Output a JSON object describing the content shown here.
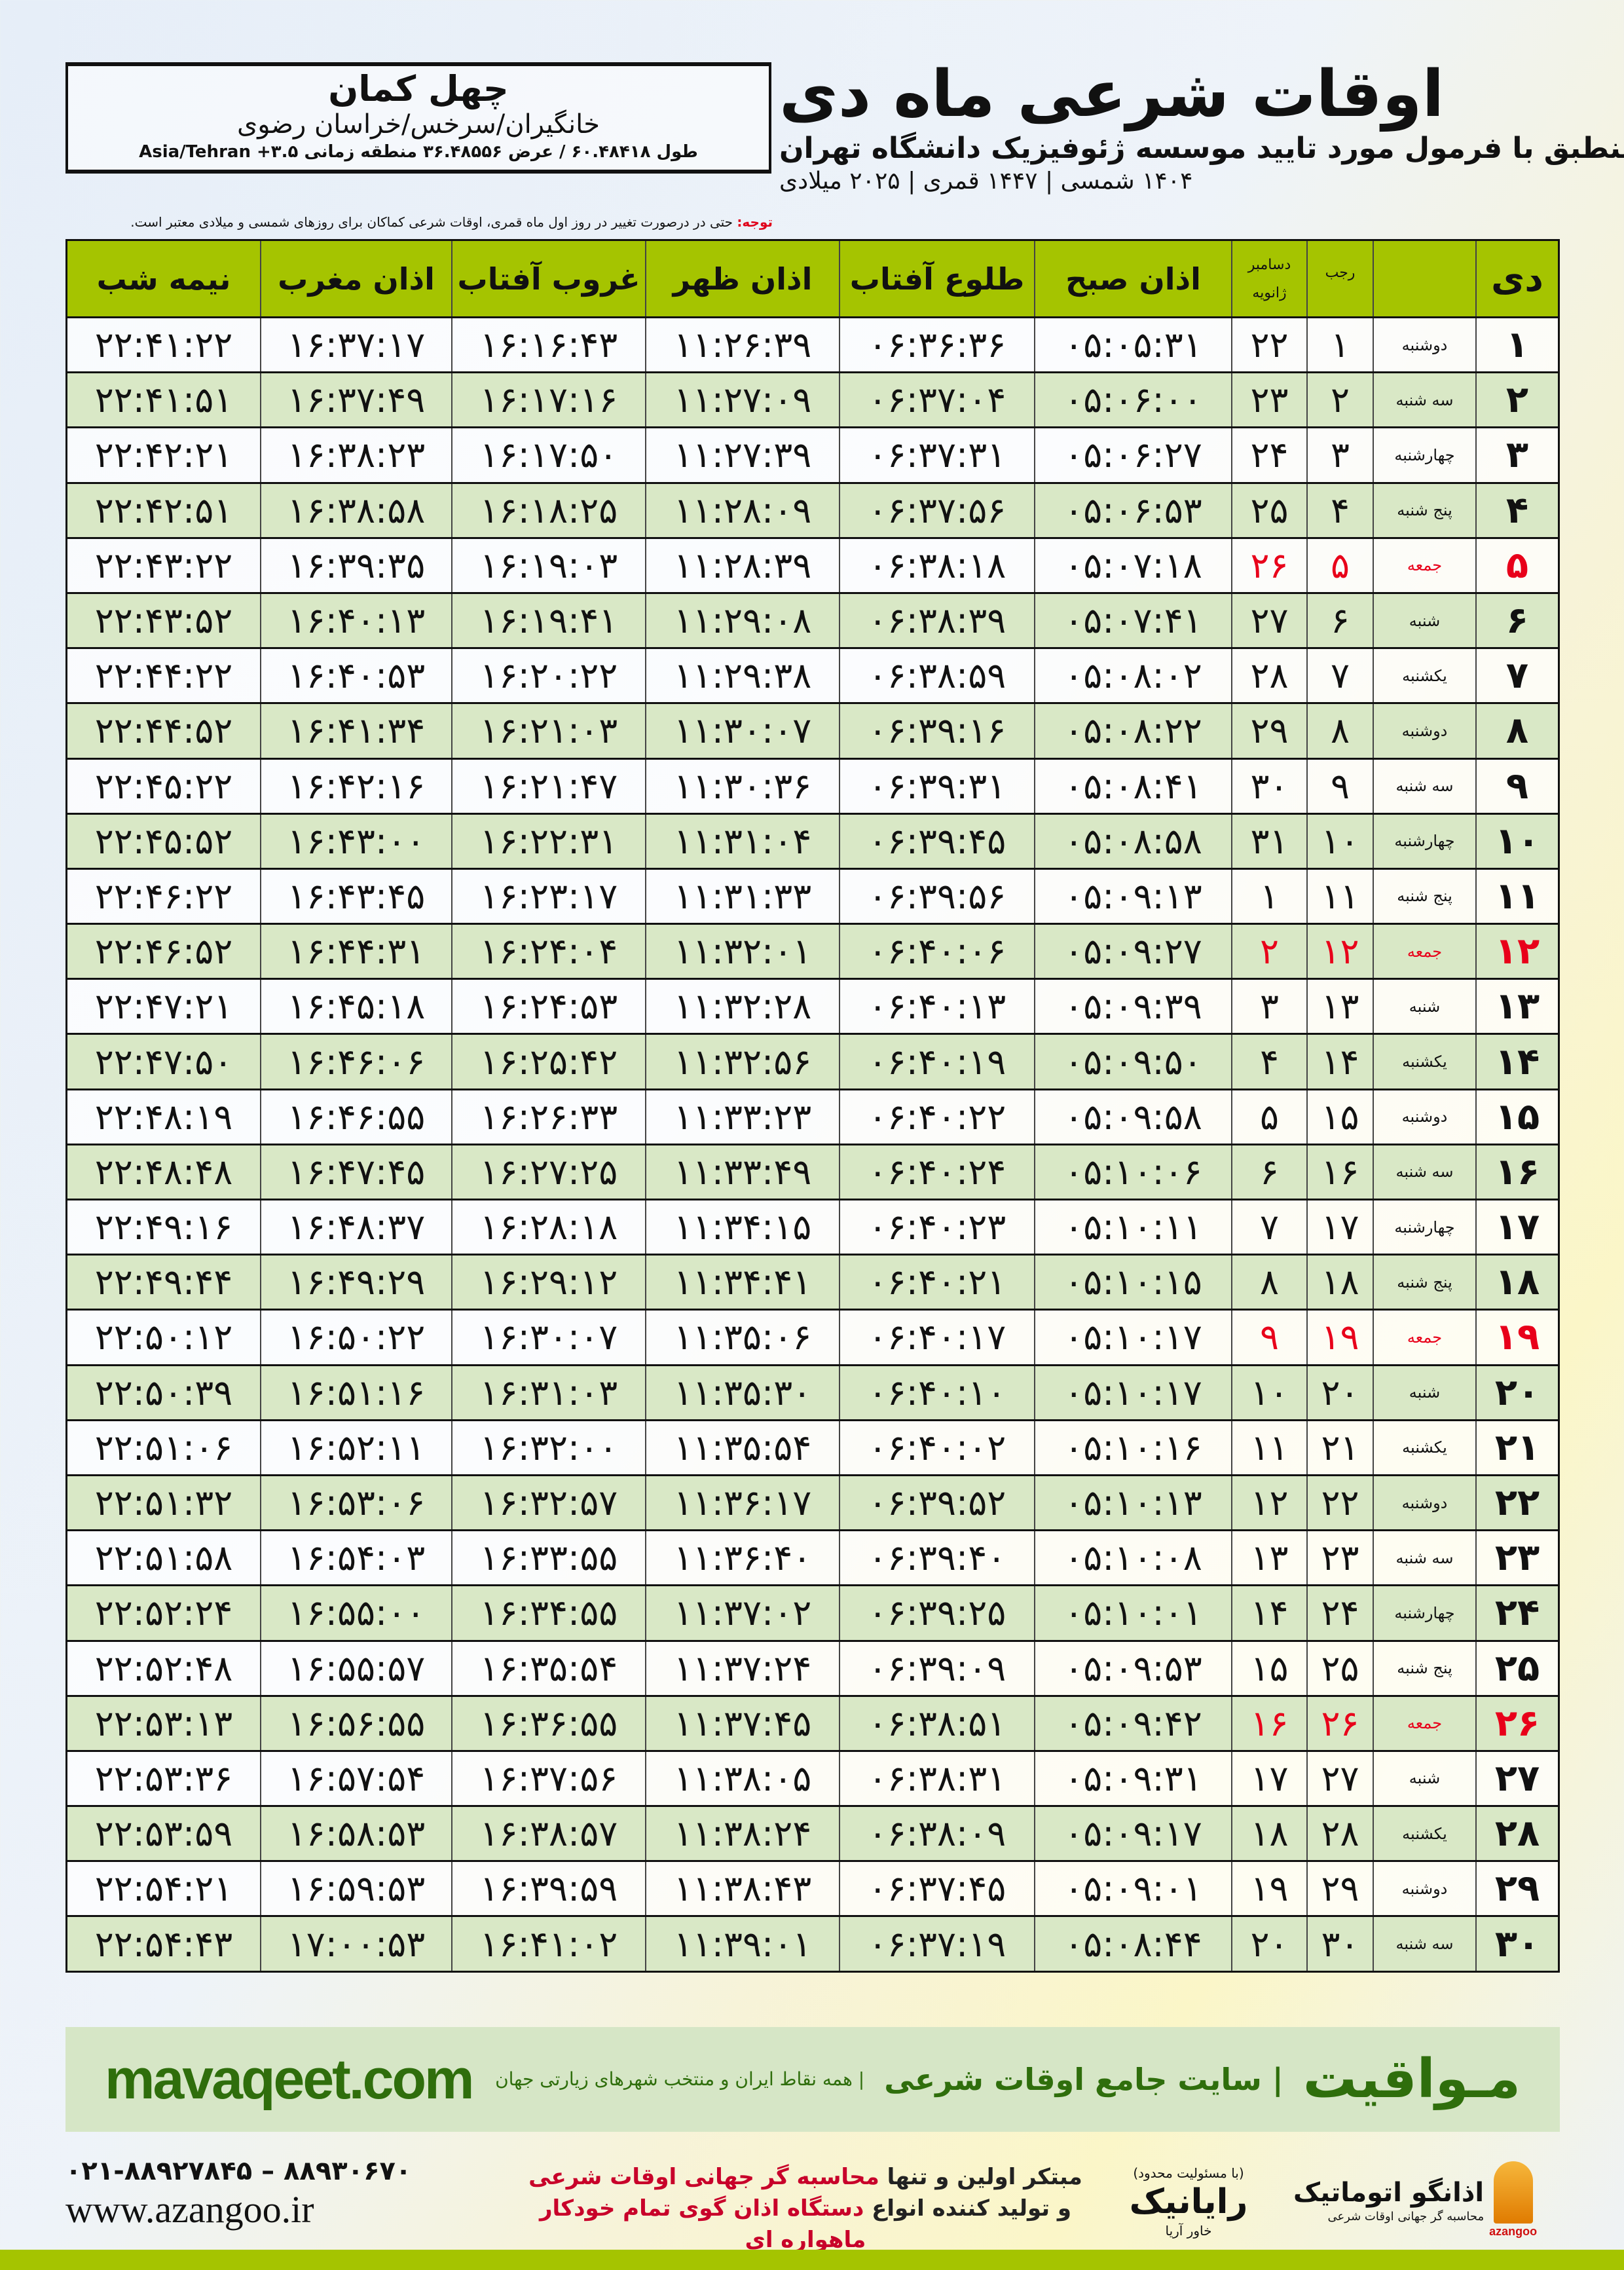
{
  "location": {
    "city": "چهل کمان",
    "region": "خانگیران/سرخس/خراسان رضوی",
    "coords": "طول ۶۰.۴۸۴۱۸ / عرض ۳۶.۴۸۵۵۶ منطقه زمانی ۳.۵+ Asia/Tehran"
  },
  "header": {
    "title": "اوقات شرعی ماه دی",
    "subtitle": "منطبق با فرمول مورد تایید موسسه ژئوفیزیک دانشگاه تهران",
    "years": "۱۴۰۴ شمسی | ۱۴۴۷ قمری | ۲۰۲۵ میلادی"
  },
  "note": {
    "label": "توجه:",
    "text": " حتی در درصورت تغییر در روز اول ماه قمری، اوقات شرعی کماکان برای روزهای شمسی و میلادی معتبر است."
  },
  "colors": {
    "header_bg": "#a5c400",
    "row_alt": "#d9e8c6",
    "friday": "#e8001a",
    "brand": "#2f6e0c"
  },
  "table": {
    "columns": {
      "day": "دی",
      "rajab": "رجب",
      "gregorian_top": "دسامبر",
      "gregorian_bottom": "ژانویه",
      "fajr": "اذان صبح",
      "sunrise": "طلوع آفتاب",
      "dhuhr": "اذان ظهر",
      "sunset": "غروب آفتاب",
      "maghrib": "اذان مغرب",
      "midnight": "نیمه شب"
    },
    "rows": [
      [
        "۱",
        "دوشنبه",
        "۱",
        "۲۲",
        "۰۵:۰۵:۳۱",
        "۰۶:۳۶:۳۶",
        "۱۱:۲۶:۳۹",
        "۱۶:۱۶:۴۳",
        "۱۶:۳۷:۱۷",
        "۲۲:۴۱:۲۲"
      ],
      [
        "۲",
        "سه شنبه",
        "۲",
        "۲۳",
        "۰۵:۰۶:۰۰",
        "۰۶:۳۷:۰۴",
        "۱۱:۲۷:۰۹",
        "۱۶:۱۷:۱۶",
        "۱۶:۳۷:۴۹",
        "۲۲:۴۱:۵۱"
      ],
      [
        "۳",
        "چهارشنبه",
        "۳",
        "۲۴",
        "۰۵:۰۶:۲۷",
        "۰۶:۳۷:۳۱",
        "۱۱:۲۷:۳۹",
        "۱۶:۱۷:۵۰",
        "۱۶:۳۸:۲۳",
        "۲۲:۴۲:۲۱"
      ],
      [
        "۴",
        "پنج شنبه",
        "۴",
        "۲۵",
        "۰۵:۰۶:۵۳",
        "۰۶:۳۷:۵۶",
        "۱۱:۲۸:۰۹",
        "۱۶:۱۸:۲۵",
        "۱۶:۳۸:۵۸",
        "۲۲:۴۲:۵۱"
      ],
      [
        "۵",
        "جمعه",
        "۵",
        "۲۶",
        "۰۵:۰۷:۱۸",
        "۰۶:۳۸:۱۸",
        "۱۱:۲۸:۳۹",
        "۱۶:۱۹:۰۳",
        "۱۶:۳۹:۳۵",
        "۲۲:۴۳:۲۲"
      ],
      [
        "۶",
        "شنبه",
        "۶",
        "۲۷",
        "۰۵:۰۷:۴۱",
        "۰۶:۳۸:۳۹",
        "۱۱:۲۹:۰۸",
        "۱۶:۱۹:۴۱",
        "۱۶:۴۰:۱۳",
        "۲۲:۴۳:۵۲"
      ],
      [
        "۷",
        "یکشنبه",
        "۷",
        "۲۸",
        "۰۵:۰۸:۰۲",
        "۰۶:۳۸:۵۹",
        "۱۱:۲۹:۳۸",
        "۱۶:۲۰:۲۲",
        "۱۶:۴۰:۵۳",
        "۲۲:۴۴:۲۲"
      ],
      [
        "۸",
        "دوشنبه",
        "۸",
        "۲۹",
        "۰۵:۰۸:۲۲",
        "۰۶:۳۹:۱۶",
        "۱۱:۳۰:۰۷",
        "۱۶:۲۱:۰۳",
        "۱۶:۴۱:۳۴",
        "۲۲:۴۴:۵۲"
      ],
      [
        "۹",
        "سه شنبه",
        "۹",
        "۳۰",
        "۰۵:۰۸:۴۱",
        "۰۶:۳۹:۳۱",
        "۱۱:۳۰:۳۶",
        "۱۶:۲۱:۴۷",
        "۱۶:۴۲:۱۶",
        "۲۲:۴۵:۲۲"
      ],
      [
        "۱۰",
        "چهارشنبه",
        "۱۰",
        "۳۱",
        "۰۵:۰۸:۵۸",
        "۰۶:۳۹:۴۵",
        "۱۱:۳۱:۰۴",
        "۱۶:۲۲:۳۱",
        "۱۶:۴۳:۰۰",
        "۲۲:۴۵:۵۲"
      ],
      [
        "۱۱",
        "پنج شنبه",
        "۱۱",
        "۱",
        "۰۵:۰۹:۱۳",
        "۰۶:۳۹:۵۶",
        "۱۱:۳۱:۳۳",
        "۱۶:۲۳:۱۷",
        "۱۶:۴۳:۴۵",
        "۲۲:۴۶:۲۲"
      ],
      [
        "۱۲",
        "جمعه",
        "۱۲",
        "۲",
        "۰۵:۰۹:۲۷",
        "۰۶:۴۰:۰۶",
        "۱۱:۳۲:۰۱",
        "۱۶:۲۴:۰۴",
        "۱۶:۴۴:۳۱",
        "۲۲:۴۶:۵۲"
      ],
      [
        "۱۳",
        "شنبه",
        "۱۳",
        "۳",
        "۰۵:۰۹:۳۹",
        "۰۶:۴۰:۱۳",
        "۱۱:۳۲:۲۸",
        "۱۶:۲۴:۵۳",
        "۱۶:۴۵:۱۸",
        "۲۲:۴۷:۲۱"
      ],
      [
        "۱۴",
        "یکشنبه",
        "۱۴",
        "۴",
        "۰۵:۰۹:۵۰",
        "۰۶:۴۰:۱۹",
        "۱۱:۳۲:۵۶",
        "۱۶:۲۵:۴۲",
        "۱۶:۴۶:۰۶",
        "۲۲:۴۷:۵۰"
      ],
      [
        "۱۵",
        "دوشنبه",
        "۱۵",
        "۵",
        "۰۵:۰۹:۵۸",
        "۰۶:۴۰:۲۲",
        "۱۱:۳۳:۲۳",
        "۱۶:۲۶:۳۳",
        "۱۶:۴۶:۵۵",
        "۲۲:۴۸:۱۹"
      ],
      [
        "۱۶",
        "سه شنبه",
        "۱۶",
        "۶",
        "۰۵:۱۰:۰۶",
        "۰۶:۴۰:۲۴",
        "۱۱:۳۳:۴۹",
        "۱۶:۲۷:۲۵",
        "۱۶:۴۷:۴۵",
        "۲۲:۴۸:۴۸"
      ],
      [
        "۱۷",
        "چهارشنبه",
        "۱۷",
        "۷",
        "۰۵:۱۰:۱۱",
        "۰۶:۴۰:۲۳",
        "۱۱:۳۴:۱۵",
        "۱۶:۲۸:۱۸",
        "۱۶:۴۸:۳۷",
        "۲۲:۴۹:۱۶"
      ],
      [
        "۱۸",
        "پنج شنبه",
        "۱۸",
        "۸",
        "۰۵:۱۰:۱۵",
        "۰۶:۴۰:۲۱",
        "۱۱:۳۴:۴۱",
        "۱۶:۲۹:۱۲",
        "۱۶:۴۹:۲۹",
        "۲۲:۴۹:۴۴"
      ],
      [
        "۱۹",
        "جمعه",
        "۱۹",
        "۹",
        "۰۵:۱۰:۱۷",
        "۰۶:۴۰:۱۷",
        "۱۱:۳۵:۰۶",
        "۱۶:۳۰:۰۷",
        "۱۶:۵۰:۲۲",
        "۲۲:۵۰:۱۲"
      ],
      [
        "۲۰",
        "شنبه",
        "۲۰",
        "۱۰",
        "۰۵:۱۰:۱۷",
        "۰۶:۴۰:۱۰",
        "۱۱:۳۵:۳۰",
        "۱۶:۳۱:۰۳",
        "۱۶:۵۱:۱۶",
        "۲۲:۵۰:۳۹"
      ],
      [
        "۲۱",
        "یکشنبه",
        "۲۱",
        "۱۱",
        "۰۵:۱۰:۱۶",
        "۰۶:۴۰:۰۲",
        "۱۱:۳۵:۵۴",
        "۱۶:۳۲:۰۰",
        "۱۶:۵۲:۱۱",
        "۲۲:۵۱:۰۶"
      ],
      [
        "۲۲",
        "دوشنبه",
        "۲۲",
        "۱۲",
        "۰۵:۱۰:۱۳",
        "۰۶:۳۹:۵۲",
        "۱۱:۳۶:۱۷",
        "۱۶:۳۲:۵۷",
        "۱۶:۵۳:۰۶",
        "۲۲:۵۱:۳۲"
      ],
      [
        "۲۳",
        "سه شنبه",
        "۲۳",
        "۱۳",
        "۰۵:۱۰:۰۸",
        "۰۶:۳۹:۴۰",
        "۱۱:۳۶:۴۰",
        "۱۶:۳۳:۵۵",
        "۱۶:۵۴:۰۳",
        "۲۲:۵۱:۵۸"
      ],
      [
        "۲۴",
        "چهارشنبه",
        "۲۴",
        "۱۴",
        "۰۵:۱۰:۰۱",
        "۰۶:۳۹:۲۵",
        "۱۱:۳۷:۰۲",
        "۱۶:۳۴:۵۵",
        "۱۶:۵۵:۰۰",
        "۲۲:۵۲:۲۴"
      ],
      [
        "۲۵",
        "پنج شنبه",
        "۲۵",
        "۱۵",
        "۰۵:۰۹:۵۳",
        "۰۶:۳۹:۰۹",
        "۱۱:۳۷:۲۴",
        "۱۶:۳۵:۵۴",
        "۱۶:۵۵:۵۷",
        "۲۲:۵۲:۴۸"
      ],
      [
        "۲۶",
        "جمعه",
        "۲۶",
        "۱۶",
        "۰۵:۰۹:۴۲",
        "۰۶:۳۸:۵۱",
        "۱۱:۳۷:۴۵",
        "۱۶:۳۶:۵۵",
        "۱۶:۵۶:۵۵",
        "۲۲:۵۳:۱۳"
      ],
      [
        "۲۷",
        "شنبه",
        "۲۷",
        "۱۷",
        "۰۵:۰۹:۳۱",
        "۰۶:۳۸:۳۱",
        "۱۱:۳۸:۰۵",
        "۱۶:۳۷:۵۶",
        "۱۶:۵۷:۵۴",
        "۲۲:۵۳:۳۶"
      ],
      [
        "۲۸",
        "یکشنبه",
        "۲۸",
        "۱۸",
        "۰۵:۰۹:۱۷",
        "۰۶:۳۸:۰۹",
        "۱۱:۳۸:۲۴",
        "۱۶:۳۸:۵۷",
        "۱۶:۵۸:۵۳",
        "۲۲:۵۳:۵۹"
      ],
      [
        "۲۹",
        "دوشنبه",
        "۲۹",
        "۱۹",
        "۰۵:۰۹:۰۱",
        "۰۶:۳۷:۴۵",
        "۱۱:۳۸:۴۳",
        "۱۶:۳۹:۵۹",
        "۱۶:۵۹:۵۳",
        "۲۲:۵۴:۲۱"
      ],
      [
        "۳۰",
        "سه شنبه",
        "۳۰",
        "۲۰",
        "۰۵:۰۸:۴۴",
        "۰۶:۳۷:۱۹",
        "۱۱:۳۹:۰۱",
        "۱۶:۴۱:۰۲",
        "۱۷:۰۰:۵۳",
        "۲۲:۵۴:۴۳"
      ]
    ],
    "friday_label": "جمعه"
  },
  "footer": {
    "brand": "مـواقیت",
    "slogan": "| سایت جامع اوقات شرعی",
    "slogan2": "| همه نقاط ایران و منتخب شهرهای زیارتی جهان",
    "site": "mavaqeet.com",
    "phones": "۰۲۱-۸۸۹۲۷۸۴۵ – ۸۸۹۳۰۶۷۰",
    "www": "www.azangoo.ir",
    "promo1_a": "مبتکر اولین و تنها ",
    "promo1_b": "محاسبه گر جهانی اوقات شرعی",
    "promo2_a": "و تولید کننده انواع ",
    "promo2_b": "دستگاه اذان گوی تمام خودکار ماهواره ای",
    "rayanik_small": "(با مسئولیت محدود)",
    "rayanik": "رایانیک",
    "rayanik_side": "خاور آریا",
    "azangoo": "اذانگو اتوماتیک",
    "azangoo_sub": "محاسبه گر جهانی اوقات شرعی",
    "azangoo_en": "azangoo"
  }
}
